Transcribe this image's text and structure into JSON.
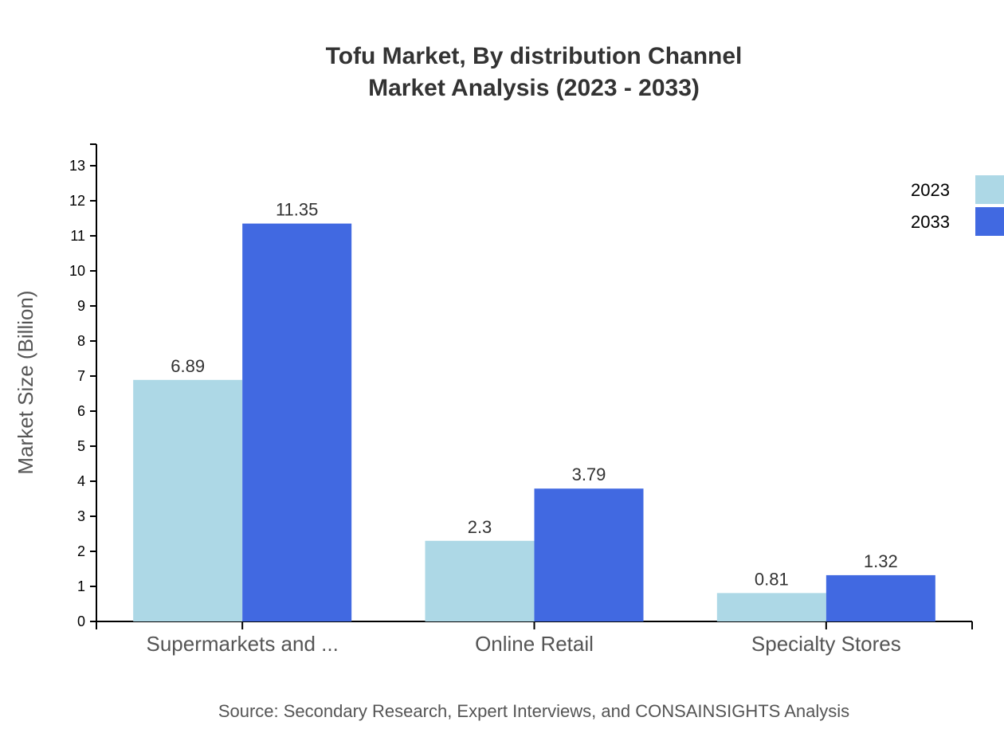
{
  "chart_data": {
    "type": "bar",
    "title": "Tofu Market, By distribution Channel",
    "subtitle": "Market Analysis (2023 - 2033)",
    "xlabel": "",
    "ylabel": "Market Size (Billion)",
    "ylim": [
      0,
      13.6
    ],
    "yticks": [
      0,
      1,
      2,
      3,
      4,
      5,
      6,
      7,
      8,
      9,
      10,
      11,
      12,
      13
    ],
    "categories": [
      "Supermarkets and ...",
      "Online Retail",
      "Specialty Stores"
    ],
    "series": [
      {
        "name": "2023",
        "color": "#add8e6",
        "values": [
          6.89,
          2.3,
          0.81
        ]
      },
      {
        "name": "2033",
        "color": "#4169e1",
        "values": [
          11.35,
          3.79,
          1.32
        ]
      }
    ],
    "legend_position": "top-right",
    "grid": false,
    "source": "Source: Secondary Research, Expert Interviews, and CONSAINSIGHTS Analysis"
  }
}
